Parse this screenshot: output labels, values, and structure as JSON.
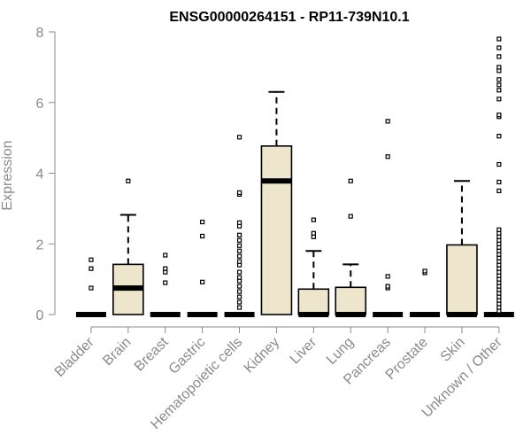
{
  "chart_data": {
    "type": "box",
    "title": "ENSG00000264151 - RP11-739N10.1",
    "ylabel": "Expression",
    "xlabel": "",
    "ylim": [
      0,
      8
    ],
    "yticks": [
      "0",
      "2",
      "4",
      "6",
      "8"
    ],
    "colors": {
      "box_fill": "#ede6cc",
      "stroke": "#000000",
      "axis": "#8a8a8a"
    },
    "categories": [
      "Bladder",
      "Brain",
      "Breast",
      "Gastric",
      "Hematopoietic cells",
      "Kidney",
      "Liver",
      "Lung",
      "Pancreas",
      "Prostate",
      "Skin",
      "Unknown / Other"
    ],
    "boxes": [
      {
        "q1": 0,
        "median": 0,
        "q3": 0,
        "whisker_low": 0,
        "whisker_high": 0,
        "outliers": [
          0.75,
          1.3,
          1.55
        ]
      },
      {
        "q1": 0,
        "median": 0.75,
        "q3": 1.42,
        "whisker_low": 0,
        "whisker_high": 2.82,
        "outliers": [
          3.78
        ]
      },
      {
        "q1": 0,
        "median": 0,
        "q3": 0,
        "whisker_low": 0,
        "whisker_high": 0,
        "outliers": [
          0.9,
          1.2,
          1.3,
          1.68
        ]
      },
      {
        "q1": 0,
        "median": 0,
        "q3": 0,
        "whisker_low": 0,
        "whisker_high": 0,
        "outliers": [
          0.92,
          2.22,
          2.62
        ]
      },
      {
        "q1": 0,
        "median": 0,
        "q3": 0,
        "whisker_low": 0,
        "whisker_high": 0,
        "outliers": [
          0.2,
          0.35,
          0.5,
          0.65,
          0.8,
          0.95,
          1.05,
          1.2,
          1.4,
          1.5,
          1.65,
          1.8,
          1.95,
          2.1,
          2.25,
          2.5,
          2.6,
          3.4,
          3.45,
          5.02
        ]
      },
      {
        "q1": 0,
        "median": 3.78,
        "q3": 4.77,
        "whisker_low": 0,
        "whisker_high": 6.3,
        "outliers": []
      },
      {
        "q1": 0,
        "median": 0,
        "q3": 0.72,
        "whisker_low": 0,
        "whisker_high": 1.8,
        "outliers": [
          2.2,
          2.3,
          2.68
        ]
      },
      {
        "q1": 0,
        "median": 0,
        "q3": 0.77,
        "whisker_low": 0,
        "whisker_high": 1.42,
        "outliers": [
          2.78,
          3.78
        ]
      },
      {
        "q1": 0,
        "median": 0,
        "q3": 0,
        "whisker_low": 0,
        "whisker_high": 0,
        "outliers": [
          0.75,
          0.8,
          1.08,
          4.47,
          5.47
        ]
      },
      {
        "q1": 0,
        "median": 0,
        "q3": 0,
        "whisker_low": 0,
        "whisker_high": 0,
        "outliers": [
          1.18,
          1.23
        ]
      },
      {
        "q1": 0,
        "median": 0,
        "q3": 1.97,
        "whisker_low": 0,
        "whisker_high": 3.78,
        "outliers": []
      },
      {
        "q1": 0,
        "median": 0,
        "q3": 0,
        "whisker_low": 0,
        "whisker_high": 0,
        "outliers": [
          0.1,
          0.2,
          0.3,
          0.4,
          0.5,
          0.6,
          0.7,
          0.8,
          0.9,
          1.0,
          1.1,
          1.2,
          1.3,
          1.4,
          1.5,
          1.6,
          1.7,
          1.8,
          1.9,
          2.0,
          2.1,
          2.2,
          2.3,
          2.4,
          3.5,
          3.75,
          4.25,
          5.05,
          5.6,
          5.65,
          6.1,
          6.35,
          6.5,
          6.65,
          6.9,
          7.0,
          7.3,
          7.55,
          7.8
        ]
      }
    ]
  }
}
